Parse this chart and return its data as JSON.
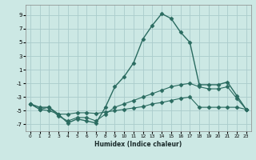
{
  "title": "",
  "xlabel": "Humidex (Indice chaleur)",
  "background_color": "#cce8e4",
  "grid_color": "#aacccc",
  "line_color": "#2a6b60",
  "xlim": [
    -0.5,
    23.5
  ],
  "ylim": [
    -8.0,
    10.5
  ],
  "yticks": [
    -7,
    -5,
    -3,
    -1,
    1,
    3,
    5,
    7,
    9
  ],
  "xticks": [
    0,
    1,
    2,
    3,
    4,
    5,
    6,
    7,
    8,
    9,
    10,
    11,
    12,
    13,
    14,
    15,
    16,
    17,
    18,
    19,
    20,
    21,
    22,
    23
  ],
  "series": [
    {
      "x": [
        0,
        1,
        2,
        3,
        4,
        5,
        6,
        7,
        8,
        9,
        10,
        11,
        12,
        13,
        14,
        15,
        16,
        17,
        18,
        19,
        20,
        21,
        22,
        23
      ],
      "y": [
        -4,
        -4.5,
        -4.5,
        -5.5,
        -6.8,
        -6.2,
        -6.5,
        -6.8,
        -4.5,
        -1.5,
        0,
        2,
        5.5,
        7.5,
        9.2,
        8.5,
        6.5,
        5.0,
        -1.2,
        -1.2,
        -1.2,
        -0.8,
        -2.8,
        -4.8
      ],
      "marker": "D",
      "markersize": 2.5,
      "linewidth": 1.0
    },
    {
      "x": [
        0,
        1,
        2,
        3,
        4,
        5,
        6,
        7,
        8,
        9,
        10,
        11,
        12,
        13,
        14,
        15,
        16,
        17,
        18,
        19,
        20,
        21,
        22,
        23
      ],
      "y": [
        -4,
        -4.8,
        -5.0,
        -5.5,
        -5.5,
        -5.3,
        -5.3,
        -5.4,
        -5.2,
        -5.0,
        -4.8,
        -4.6,
        -4.4,
        -4.0,
        -3.8,
        -3.5,
        -3.2,
        -3.0,
        -4.5,
        -4.5,
        -4.5,
        -4.5,
        -4.5,
        -4.8
      ],
      "marker": "D",
      "markersize": 2.5,
      "linewidth": 0.8
    },
    {
      "x": [
        0,
        1,
        2,
        3,
        4,
        5,
        6,
        7,
        8,
        9,
        10,
        11,
        12,
        13,
        14,
        15,
        16,
        17,
        18,
        19,
        20,
        21,
        22,
        23
      ],
      "y": [
        -4,
        -4.8,
        -4.5,
        -5.8,
        -6.5,
        -6.0,
        -6.0,
        -6.5,
        -5.5,
        -4.5,
        -4.0,
        -3.5,
        -3.0,
        -2.5,
        -2.0,
        -1.5,
        -1.2,
        -1.0,
        -1.5,
        -1.8,
        -1.8,
        -1.5,
        -3.2,
        -4.8
      ],
      "marker": "D",
      "markersize": 2.5,
      "linewidth": 0.8
    }
  ]
}
